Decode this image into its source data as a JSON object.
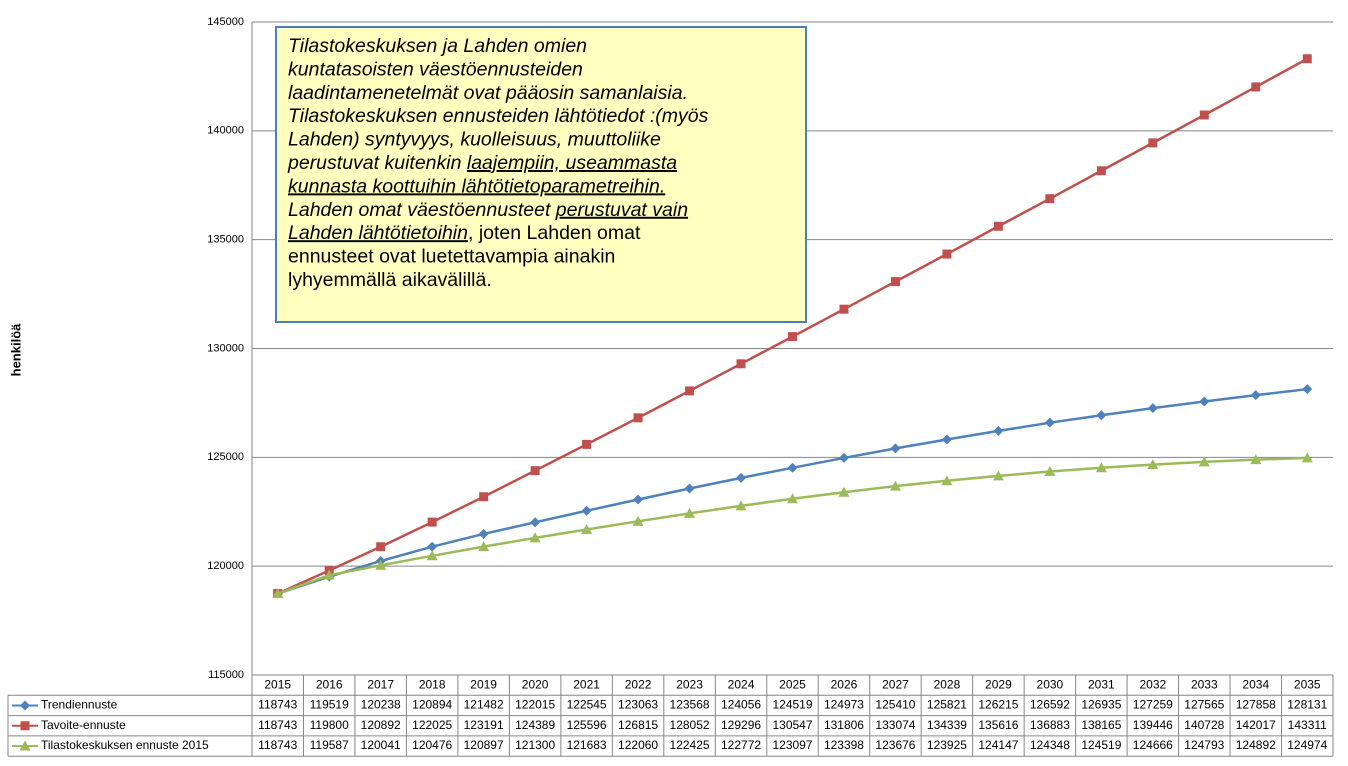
{
  "chart_data": {
    "type": "line",
    "y_label": "henkilöä",
    "categories": [
      "2015",
      "2016",
      "2017",
      "2018",
      "2019",
      "2020",
      "2021",
      "2022",
      "2023",
      "2024",
      "2025",
      "2026",
      "2027",
      "2028",
      "2029",
      "2030",
      "2031",
      "2032",
      "2033",
      "2034",
      "2035"
    ],
    "series": [
      {
        "name": "Trendiennuste",
        "color": "#4f81bd",
        "marker": "diamond",
        "values": [
          118743,
          119519,
          120238,
          120894,
          121482,
          122015,
          122545,
          123063,
          123568,
          124056,
          124519,
          124973,
          125410,
          125821,
          126215,
          126592,
          126935,
          127259,
          127565,
          127858,
          128131
        ]
      },
      {
        "name": "Tavoite-ennuste",
        "color": "#c0504d",
        "marker": "square",
        "values": [
          118743,
          119800,
          120892,
          122025,
          123191,
          124389,
          125596,
          126815,
          128052,
          129296,
          130547,
          131806,
          133074,
          134339,
          135616,
          136883,
          138165,
          139446,
          140728,
          142017,
          143311
        ]
      },
      {
        "name": "Tilastokeskuksen ennuste 2015",
        "color": "#9bbb59",
        "marker": "triangle",
        "values": [
          118743,
          119587,
          120041,
          120476,
          120897,
          121300,
          121683,
          122060,
          122425,
          122772,
          123097,
          123398,
          123676,
          123925,
          124147,
          124348,
          124519,
          124666,
          124793,
          124892,
          124974
        ]
      }
    ],
    "ylim": [
      115000,
      145000
    ],
    "yticks": [
      115000,
      120000,
      125000,
      130000,
      135000,
      140000,
      145000
    ],
    "grid": true,
    "annotation": [
      [
        {
          "text": "Tilastokeskuksen ja Lahden omien",
          "italic": true,
          "underline": false
        }
      ],
      [
        {
          "text": "kuntatasoisten väestöennusteiden",
          "italic": true,
          "underline": false
        }
      ],
      [
        {
          "text": "laadintamenetelmät ovat pääosin samanlaisia.",
          "italic": true,
          "underline": false
        }
      ],
      [
        {
          "text": "Tilastokeskuksen ennusteiden lähtötiedot :(myös",
          "italic": true,
          "underline": false
        }
      ],
      [
        {
          "text": "Lahden) syntyvyys, kuolleisuus, muuttoliike",
          "italic": true,
          "underline": false
        }
      ],
      [
        {
          "text": "perustuvat kuitenkin ",
          "italic": true,
          "underline": false
        },
        {
          "text": "laajempiin, useammasta",
          "italic": true,
          "underline": true
        }
      ],
      [
        {
          "text": "kunnasta koottuihin lähtötietoparametreihin.",
          "italic": true,
          "underline": true
        }
      ],
      [
        {
          "text": "Lahden omat väestöennusteet ",
          "italic": true,
          "underline": false
        },
        {
          "text": "perustuvat vain",
          "italic": true,
          "underline": true
        }
      ],
      [
        {
          "text": "Lahden lähtötietoihin",
          "italic": true,
          "underline": true
        },
        {
          "text": ", joten Lahden omat",
          "italic": false,
          "underline": false
        }
      ],
      [
        {
          "text": "ennusteet ovat luetettavampia ainakin",
          "italic": false,
          "underline": false
        }
      ],
      [
        {
          "text": "lyhyemmällä aikavälillä.",
          "italic": false,
          "underline": false
        }
      ]
    ]
  }
}
